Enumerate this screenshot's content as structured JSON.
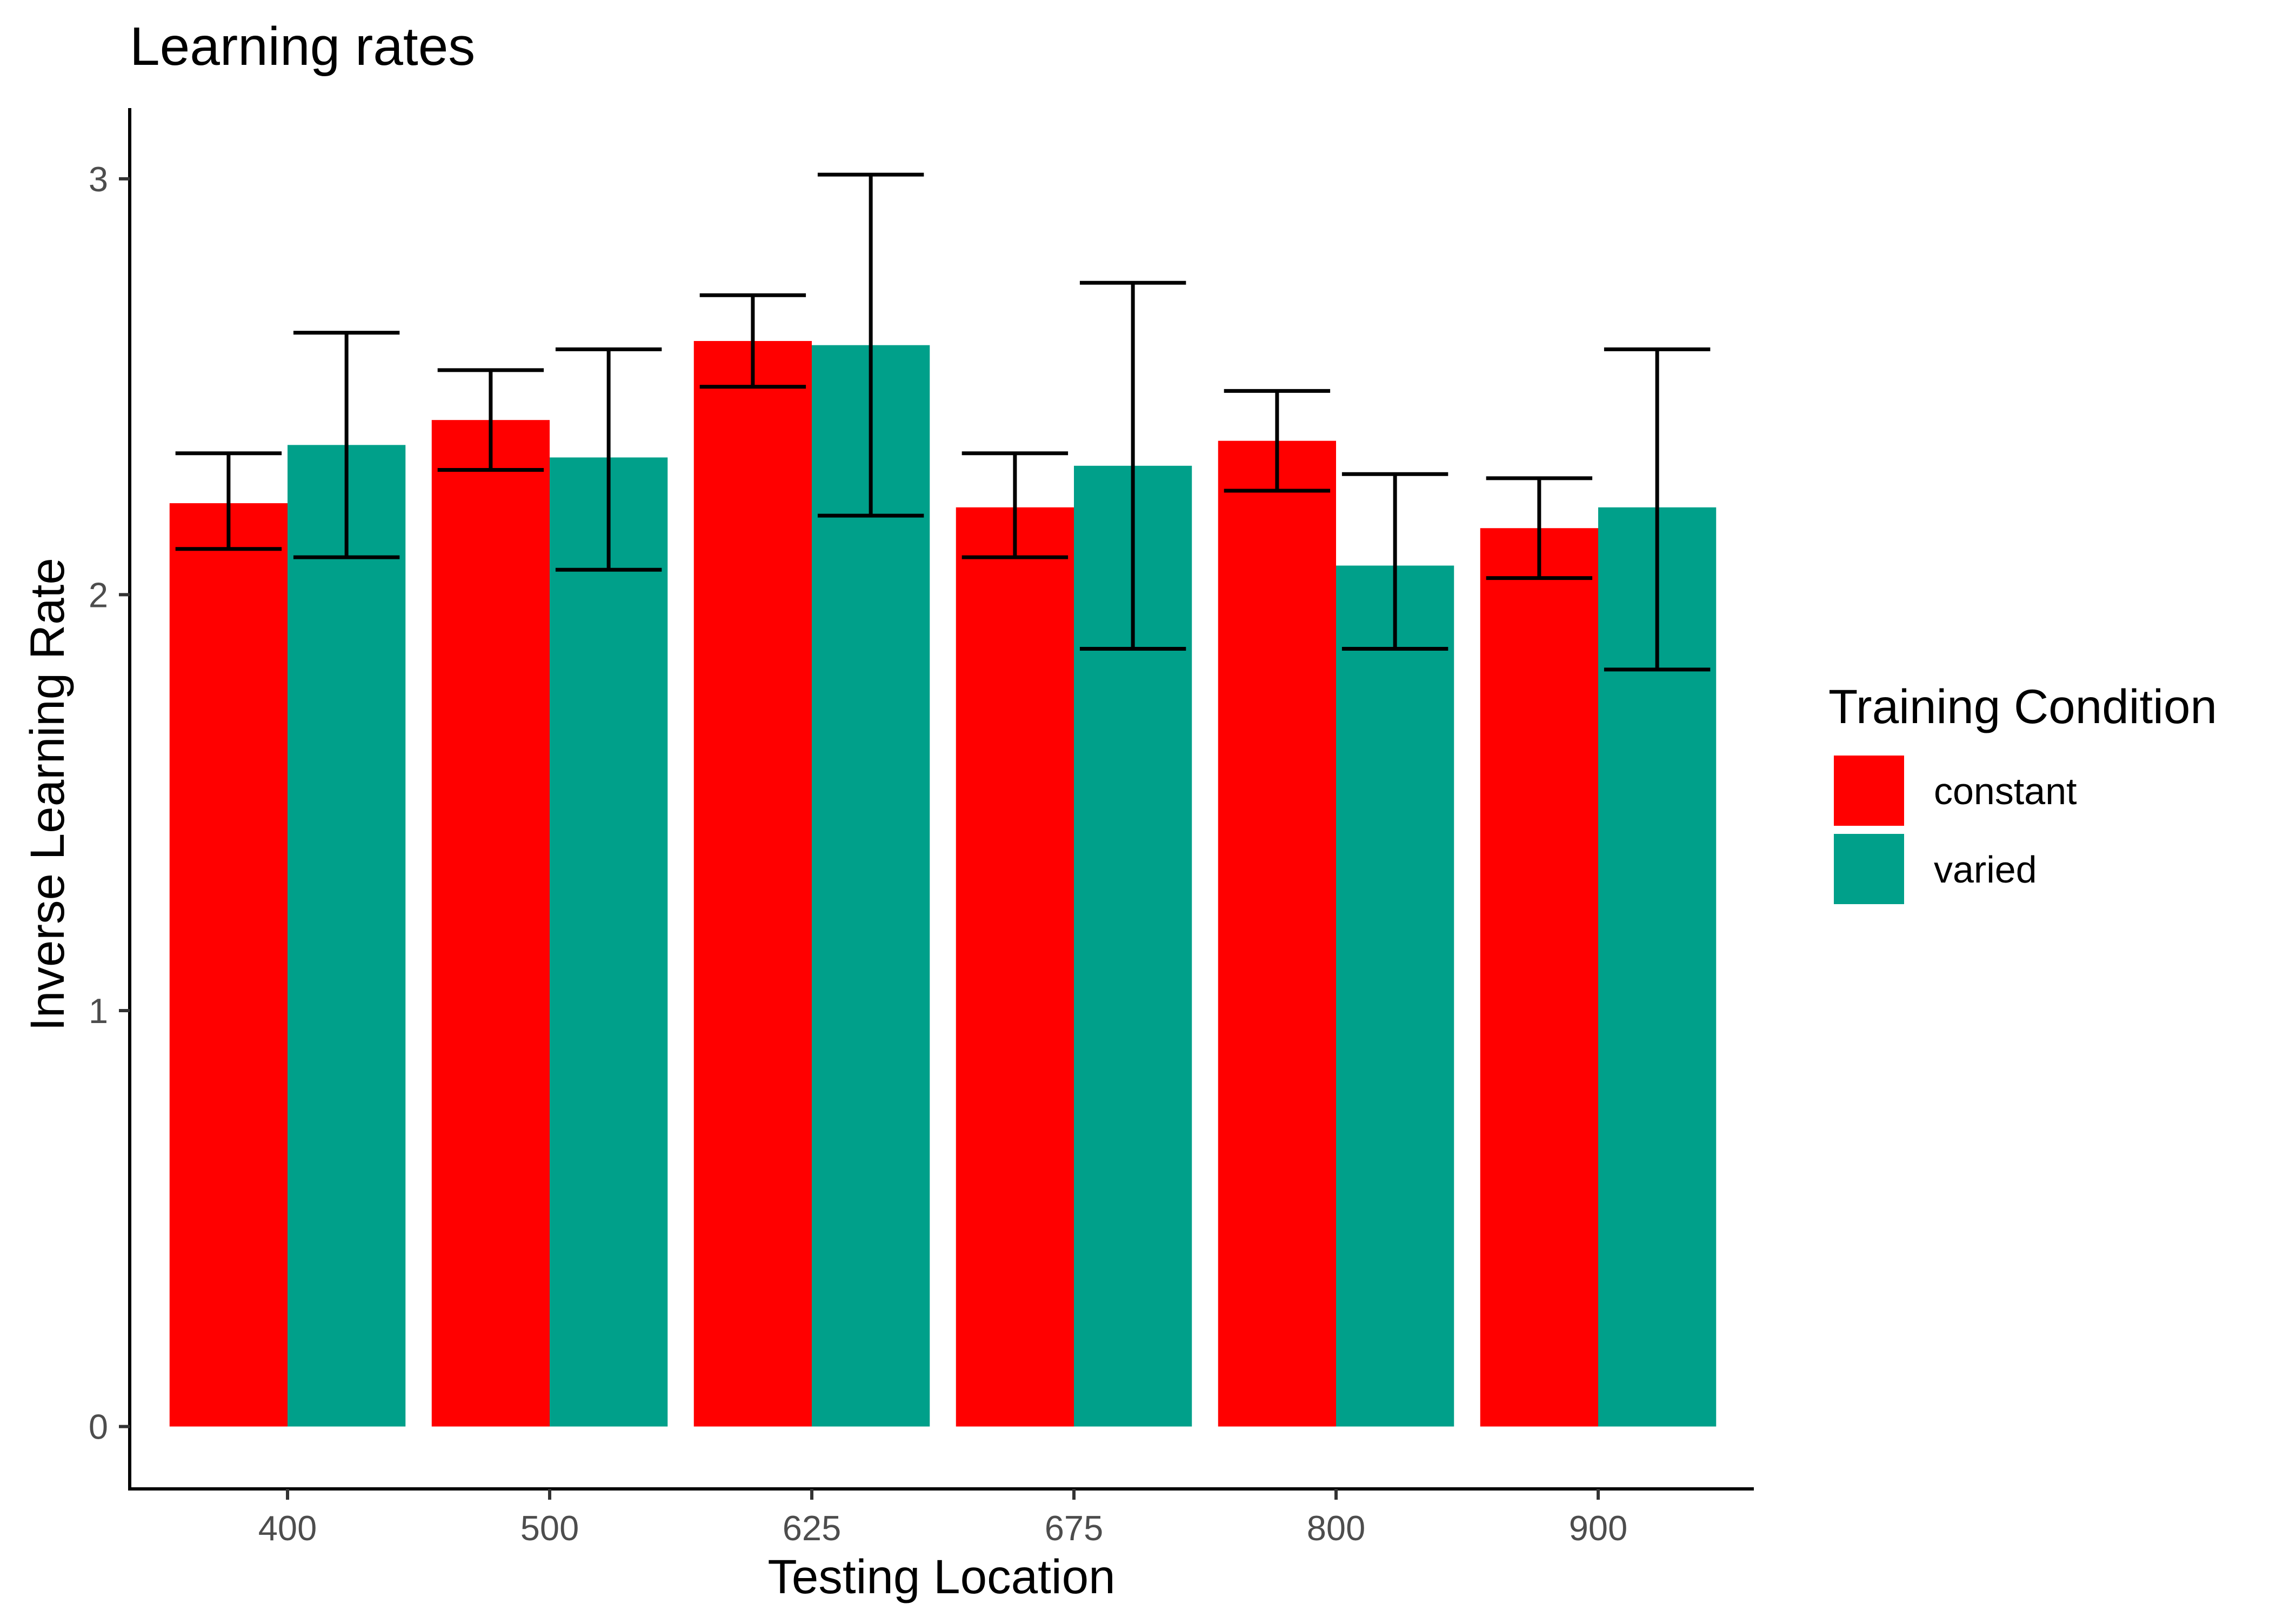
{
  "chart_data": {
    "type": "bar",
    "title": "Learning rates",
    "xlabel": "Testing Location",
    "ylabel": "Inverse Learning Rate",
    "categories": [
      "400",
      "500",
      "625",
      "675",
      "800",
      "900"
    ],
    "ylim": [
      -0.15,
      3.17
    ],
    "yticks": [
      0,
      1,
      2,
      3
    ],
    "yticks_labels": [
      "0",
      "1",
      "2",
      "3"
    ],
    "grid": false,
    "legend": {
      "title": "Training Condition",
      "position": "right"
    },
    "series": [
      {
        "name": "constant",
        "color": "#ff0000",
        "values": [
          2.22,
          2.42,
          2.61,
          2.21,
          2.37,
          2.16
        ],
        "error_low": [
          2.11,
          2.3,
          2.5,
          2.09,
          2.25,
          2.04
        ],
        "error_high": [
          2.34,
          2.54,
          2.72,
          2.34,
          2.49,
          2.28
        ]
      },
      {
        "name": "varied",
        "color": "#00a08a",
        "values": [
          2.36,
          2.33,
          2.6,
          2.31,
          2.07,
          2.21
        ],
        "error_low": [
          2.09,
          2.06,
          2.19,
          1.87,
          1.87,
          1.82
        ],
        "error_high": [
          2.63,
          2.59,
          3.01,
          2.75,
          2.29,
          2.59
        ]
      }
    ]
  }
}
